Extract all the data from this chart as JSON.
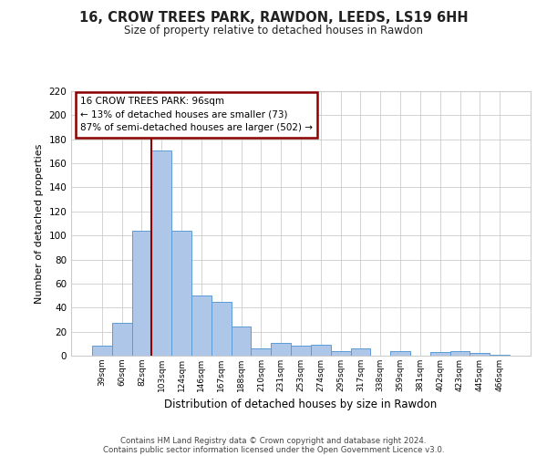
{
  "title": "16, CROW TREES PARK, RAWDON, LEEDS, LS19 6HH",
  "subtitle": "Size of property relative to detached houses in Rawdon",
  "xlabel": "Distribution of detached houses by size in Rawdon",
  "ylabel": "Number of detached properties",
  "bin_labels": [
    "39sqm",
    "60sqm",
    "82sqm",
    "103sqm",
    "124sqm",
    "146sqm",
    "167sqm",
    "188sqm",
    "210sqm",
    "231sqm",
    "253sqm",
    "274sqm",
    "295sqm",
    "317sqm",
    "338sqm",
    "359sqm",
    "381sqm",
    "402sqm",
    "423sqm",
    "445sqm",
    "466sqm"
  ],
  "bar_heights": [
    8,
    27,
    104,
    171,
    104,
    50,
    45,
    24,
    6,
    11,
    8,
    9,
    4,
    6,
    0,
    4,
    0,
    3,
    4,
    2,
    1
  ],
  "bar_color": "#aec6e8",
  "bar_edge_color": "#5b9bd5",
  "ylim": [
    0,
    220
  ],
  "yticks": [
    0,
    20,
    40,
    60,
    80,
    100,
    120,
    140,
    160,
    180,
    200,
    220
  ],
  "vline_x_index": 3,
  "vline_color": "#8b0000",
  "ann_line1": "16 CROW TREES PARK: 96sqm",
  "ann_line2": "← 13% of detached houses are smaller (73)",
  "ann_line3": "87% of semi-detached houses are larger (502) →",
  "annotation_box_color": "#8b0000",
  "footer_line1": "Contains HM Land Registry data © Crown copyright and database right 2024.",
  "footer_line2": "Contains public sector information licensed under the Open Government Licence v3.0.",
  "background_color": "#ffffff",
  "grid_color": "#cccccc"
}
